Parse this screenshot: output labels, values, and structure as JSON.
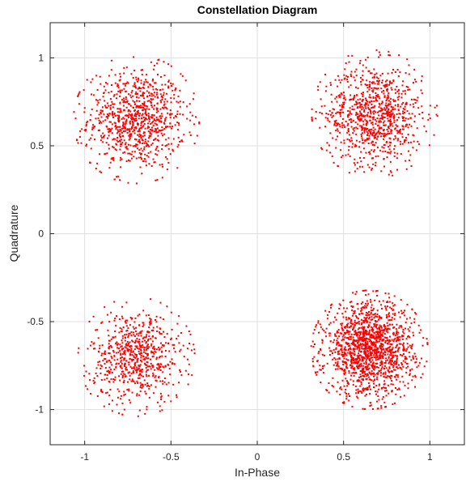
{
  "chart_data": {
    "type": "scatter",
    "title": "Constellation Diagram",
    "xlabel": "In-Phase",
    "ylabel": "Quadrature",
    "xlim": [
      -1.2,
      1.2
    ],
    "ylim": [
      -1.2,
      1.2
    ],
    "xticks": [
      -1,
      -0.5,
      0,
      0.5,
      1
    ],
    "xtick_labels": [
      "-1",
      "-0.5",
      "0",
      "0.5",
      "1"
    ],
    "yticks": [
      -1,
      -0.5,
      0,
      0.5,
      1
    ],
    "ytick_labels": [
      "-1",
      "-0.5",
      "0",
      "0.5",
      "1"
    ],
    "grid": true,
    "marker_color": "#ff0000",
    "clusters": [
      {
        "center": [
          -0.7,
          0.65
        ],
        "spread": 0.14,
        "points": 900
      },
      {
        "center": [
          0.68,
          0.68
        ],
        "spread": 0.14,
        "points": 900
      },
      {
        "center": [
          -0.7,
          -0.7
        ],
        "spread": 0.13,
        "points": 700
      },
      {
        "center": [
          0.65,
          -0.66
        ],
        "spread": 0.13,
        "points": 1500
      }
    ]
  }
}
